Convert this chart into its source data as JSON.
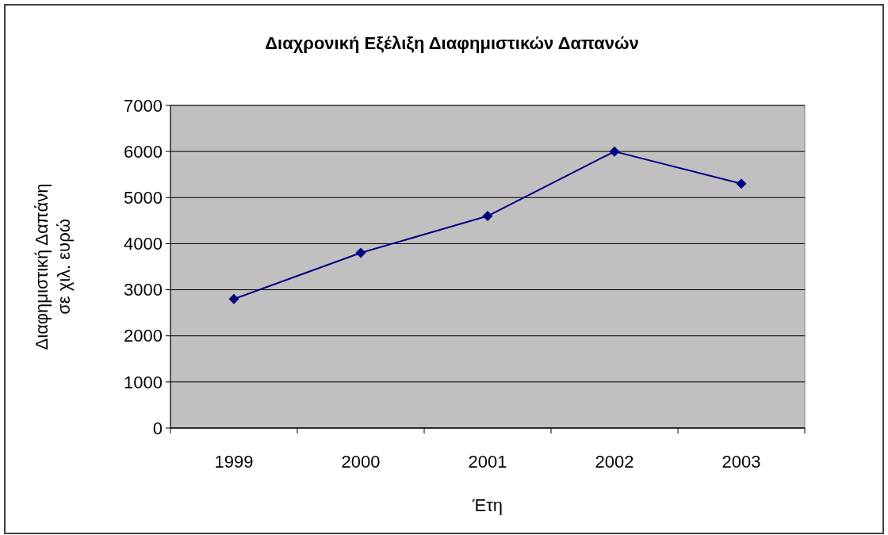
{
  "chart_data": {
    "type": "line",
    "title": "Διαχρονική Εξέλιξη Διαφημιστικών Δαπανών",
    "xlabel": "Έτη",
    "ylabel": "Διαφημιστική Δαπάνη\nσε χιλ. ευρώ",
    "categories": [
      "1999",
      "2000",
      "2001",
      "2002",
      "2003"
    ],
    "series": [
      {
        "color": "#000080",
        "values": [
          2800,
          3800,
          4600,
          6000,
          5300
        ]
      }
    ],
    "ylim": [
      0,
      7000
    ],
    "yticks": [
      0,
      1000,
      2000,
      3000,
      4000,
      5000,
      6000,
      7000
    ],
    "grid": "y",
    "marker": "diamond",
    "line_style": "solid"
  }
}
